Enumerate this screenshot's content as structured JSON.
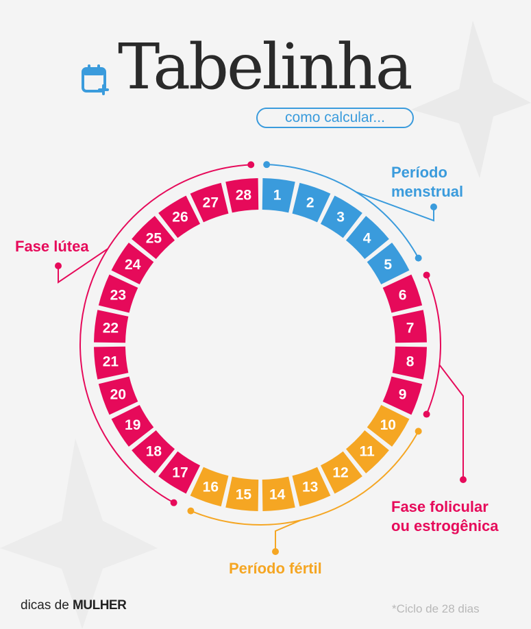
{
  "header": {
    "title": "Tabelinha",
    "subtitle": "como calcular..."
  },
  "cycle": {
    "days": [
      "1",
      "2",
      "3",
      "4",
      "5",
      "6",
      "7",
      "8",
      "9",
      "10",
      "11",
      "12",
      "13",
      "14",
      "15",
      "16",
      "17",
      "18",
      "19",
      "20",
      "21",
      "22",
      "23",
      "24",
      "25",
      "26",
      "27",
      "28"
    ],
    "phases": {
      "menstrual": {
        "label_line1": "Período",
        "label_line2": "menstrual",
        "days": [
          1,
          5
        ]
      },
      "folicular": {
        "label_line1": "Fase folicular",
        "label_line2": "ou estrogênica",
        "days": [
          6,
          9
        ]
      },
      "fertil": {
        "label": "Período fértil",
        "days": [
          10,
          16
        ]
      },
      "lutea": {
        "label": "Fase lútea",
        "days": [
          17,
          28
        ]
      }
    }
  },
  "colors": {
    "blue": "#3a9bdc",
    "pink": "#e60a5a",
    "orange": "#f5a623"
  },
  "icons": {
    "calendar": "calendar-plus-icon"
  },
  "footer": {
    "brand_prefix": "dicas de ",
    "brand_main": "MULHER",
    "note": "*Ciclo de 28 dias"
  }
}
